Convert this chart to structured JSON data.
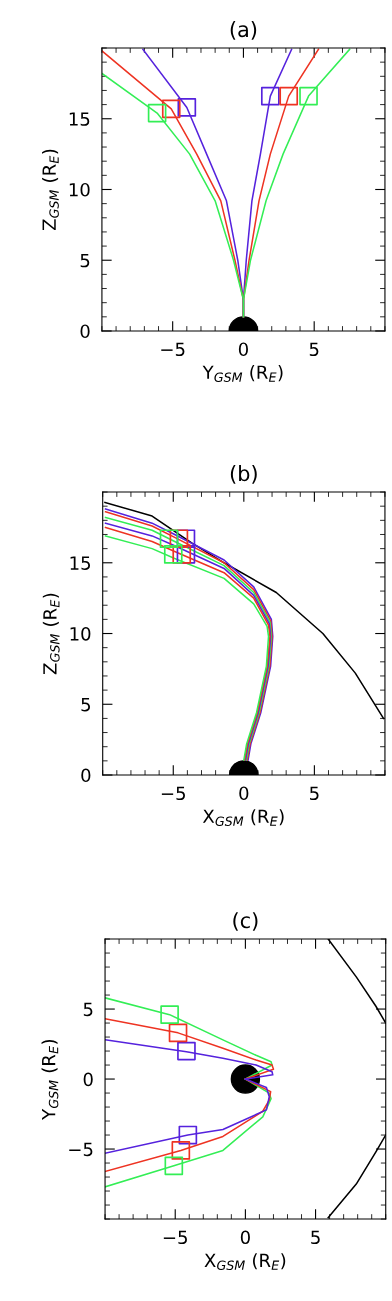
{
  "chart_data": [
    {
      "type": "line",
      "title": "(a)",
      "xlabel": "Y$_{GSM}$ (R$_{E}$)",
      "ylabel": "Z$_{GSM}$ (R$_{E}$)",
      "xlim": [
        -10,
        10
      ],
      "ylim": [
        0,
        20
      ],
      "xticks": [
        -5,
        0,
        5
      ],
      "yticks": [
        0,
        5,
        10,
        15
      ],
      "series": [
        {
          "color": "#5522dd",
          "x": [
            -7.1,
            -4.0,
            -2.6,
            -1.2,
            -0.4,
            0,
            0
          ],
          "values": [
            19.9,
            15.8,
            12.5,
            9.2,
            5.0,
            2.2,
            1.0
          ]
        },
        {
          "color": "#ee3322",
          "x": [
            -10,
            -5.1,
            -3.3,
            -1.6,
            -0.6,
            0,
            0
          ],
          "values": [
            19.8,
            15.7,
            12.5,
            9.2,
            5.0,
            2.2,
            1.0
          ]
        },
        {
          "color": "#33ee55",
          "x": [
            -10,
            -6.1,
            -3.8,
            -2.0,
            -0.7,
            0,
            0
          ],
          "values": [
            18.2,
            15.4,
            12.5,
            9.2,
            5.0,
            2.2,
            1.0
          ]
        },
        {
          "color": "#5522dd",
          "x": [
            3.4,
            1.9,
            1.2,
            0.6,
            0.2,
            0,
            0
          ],
          "values": [
            19.9,
            16.6,
            12.5,
            9.2,
            5.0,
            2.2,
            1.0
          ]
        },
        {
          "color": "#ee3322",
          "x": [
            5.3,
            3.2,
            1.9,
            1.1,
            0.4,
            0,
            0
          ],
          "values": [
            19.9,
            16.6,
            12.5,
            9.2,
            5.0,
            2.2,
            1.0
          ]
        },
        {
          "color": "#33ee55",
          "x": [
            7.5,
            4.6,
            2.8,
            1.6,
            0.5,
            0,
            0
          ],
          "values": [
            19.9,
            16.6,
            12.5,
            9.2,
            5.0,
            2.2,
            1.0
          ]
        },
        {
          "type": "scatter",
          "marker": "square",
          "color": "#5522dd",
          "x": [
            -4.0,
            1.9
          ],
          "values": [
            15.8,
            16.6
          ]
        },
        {
          "type": "scatter",
          "marker": "square",
          "color": "#ee3322",
          "x": [
            -5.1,
            3.2
          ],
          "values": [
            15.7,
            16.6
          ]
        },
        {
          "type": "scatter",
          "marker": "square",
          "color": "#33ee55",
          "x": [
            -6.1,
            4.6
          ],
          "values": [
            15.4,
            16.6
          ]
        }
      ]
    },
    {
      "type": "line",
      "title": "(b)",
      "xlabel": "X$_{GSM}$ (R$_{E}$)",
      "ylabel": "Z$_{GSM}$ (R$_{E}$)",
      "xlim": [
        -10,
        10
      ],
      "ylim": [
        0,
        20
      ],
      "xticks": [
        -5,
        0,
        5
      ],
      "yticks": [
        0,
        5,
        10,
        15
      ],
      "series": [
        {
          "color": "#000000",
          "x": [
            -9.84,
            -6.5,
            -3.7,
            -1.4,
            2.3,
            5.6,
            7.9,
            9.9
          ],
          "values": [
            19.27,
            18.3,
            16.4,
            15.0,
            12.9,
            10.0,
            7.2,
            4.0
          ]
        },
        {
          "color": "#5522dd",
          "x": [
            -9.8,
            -6.5,
            -4.9,
            -1.4,
            0.7,
            1.95,
            2.05,
            1.9,
            1.2,
            0.5,
            0.3
          ],
          "values": [
            18.8,
            17.8,
            17.0,
            15.2,
            13.3,
            11.0,
            9.8,
            7.7,
            4.4,
            2.2,
            1.06
          ]
        },
        {
          "color": "#ee3322",
          "x": [
            -9.8,
            -6.5,
            -4.9,
            -1.4,
            0.7,
            1.9,
            2.0,
            1.84,
            1.14,
            0.44,
            0.24
          ],
          "values": [
            18.6,
            17.6,
            16.8,
            15.0,
            13.1,
            10.9,
            9.8,
            7.7,
            4.4,
            2.2,
            1.06
          ]
        },
        {
          "color": "#33ee55",
          "x": [
            -9.8,
            -6.5,
            -4.9,
            -1.4,
            0.7,
            1.85,
            1.95,
            1.78,
            1.08,
            0.38,
            0.18
          ],
          "values": [
            18.2,
            17.3,
            16.5,
            14.8,
            12.9,
            10.8,
            9.8,
            7.7,
            4.4,
            2.2,
            1.06
          ]
        },
        {
          "color": "#5522dd",
          "x": [
            -9.8,
            -6.5,
            -4.9,
            -1.4,
            0.7,
            1.8,
            1.9,
            1.72,
            1.02,
            0.32,
            0.12
          ],
          "values": [
            17.8,
            16.9,
            16.2,
            14.6,
            12.7,
            10.7,
            9.8,
            7.7,
            4.4,
            2.2,
            1.06
          ]
        },
        {
          "color": "#ee3322",
          "x": [
            -9.8,
            -6.5,
            -4.9,
            -1.4,
            0.7,
            1.75,
            1.85,
            1.66,
            0.96,
            0.26,
            0.06
          ],
          "values": [
            17.5,
            16.5,
            15.8,
            14.3,
            12.5,
            10.6,
            9.8,
            7.7,
            4.4,
            2.2,
            1.06
          ]
        },
        {
          "color": "#33ee55",
          "x": [
            -9.8,
            -6.5,
            -4.9,
            -1.4,
            0.7,
            1.65,
            1.75,
            1.6,
            0.9,
            0.2,
            0
          ],
          "values": [
            16.9,
            16.0,
            15.3,
            13.9,
            12.1,
            10.5,
            9.8,
            7.7,
            4.4,
            2.2,
            1.06
          ]
        },
        {
          "type": "scatter",
          "marker": "square",
          "color": "#5522dd",
          "x": [
            -4.1,
            -4.1
          ],
          "values": [
            16.7,
            15.6
          ]
        },
        {
          "type": "scatter",
          "marker": "square",
          "color": "#ee3322",
          "x": [
            -4.6,
            -4.4
          ],
          "values": [
            16.7,
            15.6
          ]
        },
        {
          "type": "scatter",
          "marker": "square",
          "color": "#33ee55",
          "x": [
            -5.3,
            -5.0
          ],
          "values": [
            16.7,
            15.6
          ]
        }
      ]
    },
    {
      "type": "line",
      "title": "(c)",
      "xlabel": "X$_{GSM}$ (R$_{E}$)",
      "ylabel": "Y$_{GSM}$ (R$_{E}$)",
      "xlim": [
        -10,
        10
      ],
      "ylim": [
        -10,
        10
      ],
      "xticks": [
        -5,
        0,
        5
      ],
      "yticks": [
        -5,
        0,
        5
      ],
      "series": [
        {
          "color": "#000000",
          "x": [
            5.9,
            7.9,
            9.3,
            10,
            null,
            10,
            9.3,
            7.9,
            5.9
          ],
          "values": [
            10,
            7.3,
            5.2,
            4.0,
            null,
            -4.0,
            -5.2,
            -7.5,
            -9.9
          ]
        },
        {
          "color": "#33ee55",
          "x": [
            -10,
            -5.4,
            -1.6,
            0.76,
            1.83,
            1.9,
            0
          ],
          "values": [
            5.8,
            4.6,
            2.8,
            1.7,
            1.24,
            1.0,
            0
          ]
        },
        {
          "color": "#33ee55",
          "x": [
            0,
            1.7,
            1.83,
            1.24,
            -1.6,
            -5.1,
            -10
          ],
          "values": [
            0,
            -1.0,
            -1.4,
            -2.7,
            -5.1,
            -6.2,
            -7.7
          ]
        },
        {
          "color": "#ee3322",
          "x": [
            -10,
            -4.8,
            -1.6,
            0.76,
            1.9,
            2.0,
            0
          ],
          "values": [
            4.3,
            3.3,
            2.2,
            1.36,
            1.0,
            0.7,
            0
          ]
        },
        {
          "color": "#ee3322",
          "x": [
            0,
            1.8,
            1.7,
            1.24,
            -1.6,
            -4.6,
            -10
          ],
          "values": [
            0,
            -0.9,
            -1.5,
            -2.3,
            -4.1,
            -5.1,
            -6.6
          ]
        },
        {
          "color": "#5522dd",
          "x": [
            -10,
            -4.2,
            -1.6,
            0.76,
            1.9,
            1.95,
            0
          ],
          "values": [
            2.8,
            1.95,
            1.48,
            1.0,
            0.52,
            0.3,
            0
          ]
        },
        {
          "color": "#5522dd",
          "x": [
            0,
            1.5,
            1.7,
            1.5,
            -1.6,
            -4.1,
            -10
          ],
          "values": [
            0,
            -0.6,
            -1.26,
            -2.2,
            -3.6,
            -4.0,
            -5.3
          ]
        },
        {
          "type": "scatter",
          "marker": "square",
          "color": "#5522dd",
          "x": [
            -4.2,
            -4.1
          ],
          "values": [
            2.0,
            -4.0
          ]
        },
        {
          "type": "scatter",
          "marker": "square",
          "color": "#ee3322",
          "x": [
            -4.8,
            -4.6
          ],
          "values": [
            3.3,
            -5.1
          ]
        },
        {
          "type": "scatter",
          "marker": "square",
          "color": "#33ee55",
          "x": [
            -5.4,
            -5.1
          ],
          "values": [
            4.6,
            -6.2
          ]
        }
      ]
    }
  ]
}
